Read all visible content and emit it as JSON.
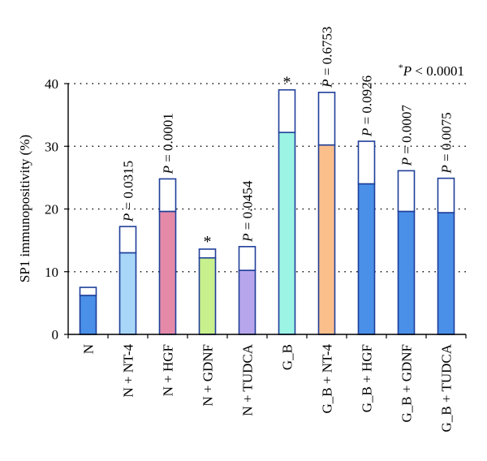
{
  "chart_data": {
    "type": "bar",
    "ylabel": "SP1 immunopositivity (%)",
    "ylim": [
      0,
      40
    ],
    "yticks": [
      "0",
      "10",
      "20",
      "30",
      "40"
    ],
    "grid": true,
    "note": "*P < 0.0001",
    "categories": [
      "N",
      "N + NT-4",
      "N + HGF",
      "N + GDNF",
      "N + TUDCA",
      "G_B",
      "G_B + NT-4",
      "G_B + HGF",
      "G_B + GDNF",
      "G_B + TUDCA"
    ],
    "series": [
      {
        "values": [
          6.2,
          13.0,
          19.6,
          12.2,
          10.2,
          32.2,
          30.2,
          24.0,
          19.6,
          19.4
        ]
      },
      {
        "values": [
          7.5,
          17.2,
          24.8,
          13.6,
          14.0,
          39.0,
          38.6,
          30.8,
          26.1,
          24.9
        ]
      }
    ],
    "colors": [
      "#4a90e8",
      "#a8d6f8",
      "#e48aa8",
      "#c8f08c",
      "#b8a6ec",
      "#9cf4e4",
      "#fbbf8c",
      "#4a90e8",
      "#4a90e8",
      "#4a90e8"
    ],
    "annotations": [
      "",
      "P = 0.0315",
      "P = 0.0001",
      "*",
      "P = 0.0454",
      "*",
      "P = 0.6753",
      "P = 0.0926",
      "P = 0.0007",
      "P = 0.0075"
    ]
  }
}
